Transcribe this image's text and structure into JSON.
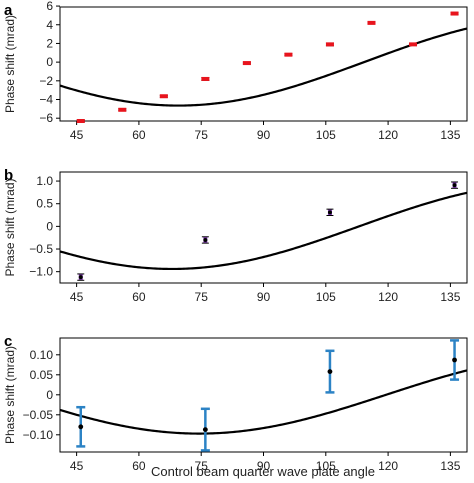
{
  "colors": {
    "curve": "#000000",
    "panel_a_marker": "#e8141d",
    "panel_b_marker": "#8e44c4",
    "panel_c_errorbar": "#2c83c5",
    "panel_c_point": "#000000"
  },
  "shared_xlabel": "Control beam quarter wave plate angle",
  "chart_data": [
    {
      "panel": "a",
      "type": "scatter",
      "ylabel": "Phase shift (mrad)",
      "xlim": [
        41,
        139
      ],
      "ylim": [
        -6.3,
        5.9
      ],
      "xticks": [
        45,
        60,
        75,
        90,
        105,
        120,
        135
      ],
      "xtick_labels": [
        "45",
        "60",
        "75",
        "90",
        "105",
        "120",
        "135"
      ],
      "yticks": [
        6,
        4,
        2,
        0,
        -2,
        -4,
        -6
      ],
      "ytick_labels": [
        "6",
        "4",
        "2",
        "0",
        "−2",
        "−4",
        "−6"
      ],
      "marker": "rect",
      "fit_curve": {
        "offset": 0.05,
        "amplitude": 4.7,
        "phase_deg": -229,
        "freq": 2
      },
      "points": [
        {
          "x": 46,
          "y": -6.3,
          "err": 0.1
        },
        {
          "x": 56,
          "y": -5.1,
          "err": 0.1
        },
        {
          "x": 66,
          "y": -3.65,
          "err": 0.1
        },
        {
          "x": 76,
          "y": -1.8,
          "err": 0.15
        },
        {
          "x": 86,
          "y": -0.1,
          "err": 0.1
        },
        {
          "x": 96,
          "y": 0.8,
          "err": 0.1
        },
        {
          "x": 106,
          "y": 1.9,
          "err": 0.15
        },
        {
          "x": 116,
          "y": 4.2,
          "err": 0.1
        },
        {
          "x": 126,
          "y": 1.9,
          "err": 0.1
        },
        {
          "x": 136,
          "y": 5.2,
          "err": 0.1
        }
      ]
    },
    {
      "panel": "b",
      "type": "scatter",
      "ylabel": "Phase shift (mrad)",
      "xlim": [
        41,
        139
      ],
      "ylim": [
        -1.25,
        1.2
      ],
      "xticks": [
        45,
        60,
        75,
        90,
        105,
        120,
        135
      ],
      "xtick_labels": [
        "45",
        "60",
        "75",
        "90",
        "105",
        "120",
        "135"
      ],
      "yticks": [
        1.0,
        0.5,
        0,
        -0.5,
        -1.0
      ],
      "ytick_labels": [
        "1.0",
        "0.5",
        "0",
        "−0.5",
        "−1.0"
      ],
      "marker": "circle",
      "fit_curve": {
        "offset": 0.0,
        "amplitude": 0.94,
        "phase_deg": -226,
        "freq": 2
      },
      "points": [
        {
          "x": 46,
          "y": -1.12,
          "err": 0.07
        },
        {
          "x": 76,
          "y": -0.3,
          "err": 0.07
        },
        {
          "x": 106,
          "y": 0.31,
          "err": 0.07
        },
        {
          "x": 136,
          "y": 0.91,
          "err": 0.07
        }
      ]
    },
    {
      "panel": "c",
      "type": "scatter",
      "ylabel": "Phase shift (mrad)",
      "xlim": [
        41,
        139
      ],
      "ylim": [
        -0.143,
        0.142
      ],
      "xticks": [
        45,
        60,
        75,
        90,
        105,
        120,
        135
      ],
      "xtick_labels": [
        "45",
        "60",
        "75",
        "90",
        "105",
        "120",
        "135"
      ],
      "yticks": [
        0.1,
        0.05,
        0,
        -0.05,
        -0.1
      ],
      "ytick_labels": [
        "0.10",
        "0.05",
        "0",
        "−0.05",
        "−0.10"
      ],
      "marker": "circle",
      "fit_curve": {
        "offset": 0.0,
        "amplitude": 0.097,
        "phase_deg": -239,
        "freq": 2
      },
      "points": [
        {
          "x": 46,
          "y": -0.08,
          "err": 0.049
        },
        {
          "x": 76,
          "y": -0.087,
          "err": 0.052
        },
        {
          "x": 106,
          "y": 0.058,
          "err": 0.052
        },
        {
          "x": 136,
          "y": 0.087,
          "err": 0.049
        }
      ]
    }
  ]
}
